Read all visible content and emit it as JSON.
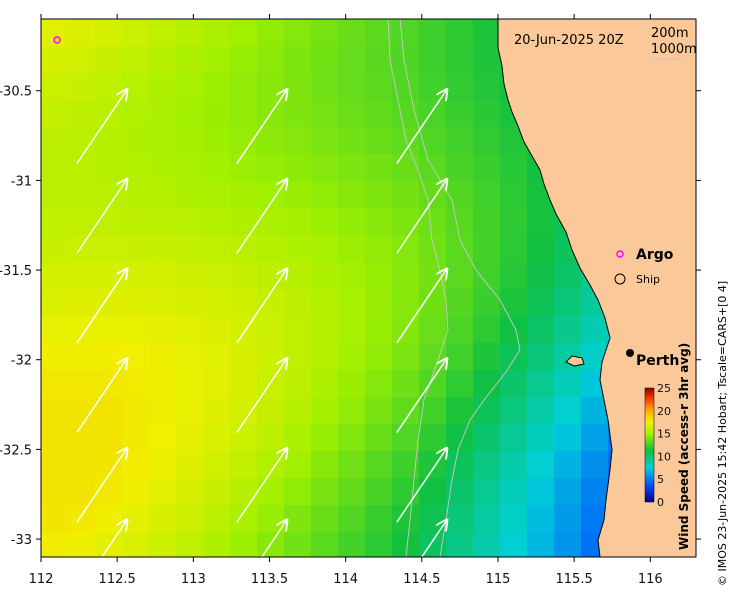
{
  "map": {
    "date_label": "20-Jun-2025 20Z",
    "depth_contours": [
      "200m",
      "1000m"
    ],
    "lon_ticks": [
      "112",
      "112.5",
      "113",
      "113.5",
      "114",
      "114.5",
      "115",
      "115.5",
      "116"
    ],
    "lat_ticks": [
      "-30.5",
      "-31",
      "-31.5",
      "-32",
      "-32.5",
      "-33"
    ],
    "lon_range": [
      112,
      116.3
    ],
    "lat_range": [
      -33.1,
      -30.1
    ],
    "colors": {
      "land": "#FBC89A",
      "contour": "#c8c8c8",
      "arrow": "#ffffff",
      "argo_marker": "#ff00ff"
    },
    "legend": {
      "argo_label": "Argo",
      "ship_label": "Ship"
    },
    "place_label": "Perth",
    "colorbar": {
      "title": "Wind Speed (access-r 3hr avg)",
      "ticks": [
        "25",
        "20",
        "15",
        "10",
        "5",
        "0"
      ],
      "range": [
        0,
        25
      ]
    },
    "credit": "© IMOS 23-Jun-2025 15:42 Hobart; Tscale=CARS+[0 4]"
  }
}
